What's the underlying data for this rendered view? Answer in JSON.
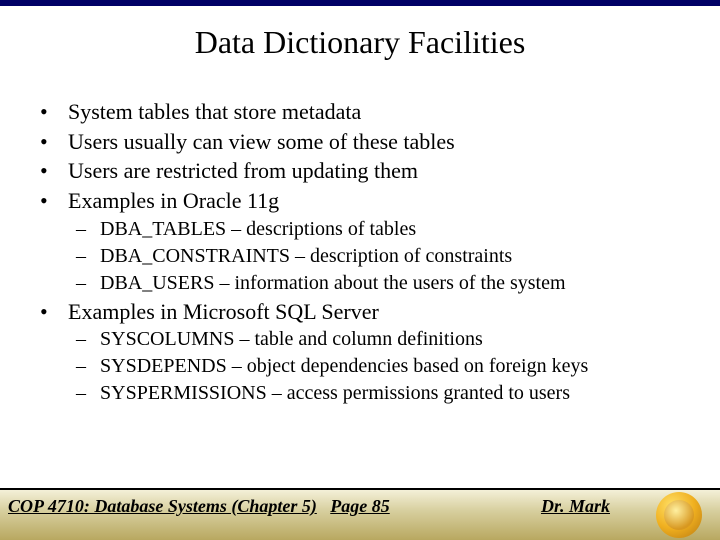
{
  "title": "Data Dictionary Facilities",
  "bullets": {
    "b1": "System tables that store metadata",
    "b2": "Users usually can view some of these tables",
    "b3": "Users are restricted from updating them",
    "b4": "Examples in Oracle 11g",
    "b4_sub": {
      "s1": "DBA_TABLES – descriptions of tables",
      "s2": "DBA_CONSTRAINTS – description of constraints",
      "s3": "DBA_USERS – information about the users of the system"
    },
    "b5": "Examples in Microsoft SQL Server",
    "b5_sub": {
      "s1": "SYSCOLUMNS – table and column definitions",
      "s2": "SYSDEPENDS – object dependencies based on foreign keys",
      "s3": "SYSPERMISSIONS – access permissions granted to users"
    }
  },
  "footer": {
    "left": "COP 4710: Database Systems (Chapter 5)",
    "center": "Page 85",
    "right": "Dr. Mark"
  },
  "colors": {
    "top_border": "#000066",
    "text": "#000000",
    "footer_grad_top": "#f4f0d8",
    "footer_grad_bottom": "#b8a860",
    "logo_gold": "#f0b020"
  }
}
